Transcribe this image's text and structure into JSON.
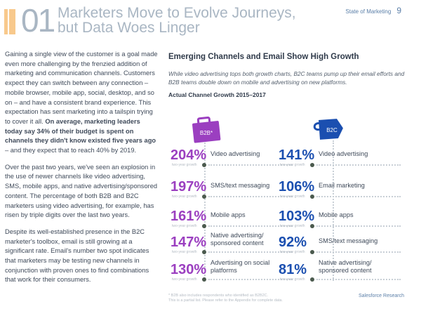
{
  "header": {
    "number": "01",
    "title_line1": "Marketers Move to Evolve Journeys,",
    "title_line2": "but Data Woes Linger",
    "report": "State of Marketing",
    "page": "9"
  },
  "left": {
    "paragraphs": [
      [
        {
          "t": "Gaining a single view of the customer is a goal made even more challenging by the frenzied addition of marketing and communication channels. Customers expect they can switch between any connection – mobile browser, mobile app, social, desktop, and so on – and have a consistent brand experience. This expectation has sent marketing into a tailspin trying to cover it all. "
        },
        {
          "b": "On average, marketing leaders today say 34% of their budget is spent on channels they didn't know existed five years ago"
        },
        {
          "t": " – and they expect that to reach 40% by 2019."
        }
      ],
      [
        {
          "t": "Over the past two years, we've seen an explosion in the use of newer channels like video advertising, SMS, mobile apps, and native advertising/sponsored content. The percentage of both B2B and B2C marketers using video advertising, for example, has risen by triple digits over the last two years."
        }
      ],
      [
        {
          "t": "Despite its well-established presence in the B2C marketer's toolbox, email is still growing at a significant rate. Email's number two spot indicates that marketers may be testing new channels in conjunction with proven ones to find combinations that work for their consumers."
        }
      ]
    ]
  },
  "right": {
    "heading": "Emerging Channels and Email Show High Growth",
    "intro": "While video advertising tops both growth charts, B2C teams pump up their email efforts and B2B teams double down on mobile and advertising on new platforms.",
    "chart_title": "Actual Channel Growth 2015–2017",
    "growth_label": "two-year growth",
    "b2b": {
      "label": "B2B*",
      "color": "#9b3fc0",
      "items": [
        {
          "pct": "204%",
          "label": "Video advertising"
        },
        {
          "pct": "197%",
          "label": "SMS/text messaging"
        },
        {
          "pct": "161%",
          "label": "Mobile apps"
        },
        {
          "pct": "147%",
          "label": "Native advertising/ sponsored content"
        },
        {
          "pct": "130%",
          "label": "Advertising on social platforms"
        }
      ]
    },
    "b2c": {
      "label": "B2C",
      "color": "#1b4fb0",
      "items": [
        {
          "pct": "141%",
          "label": "Video advertising"
        },
        {
          "pct": "106%",
          "label": "Email marketing"
        },
        {
          "pct": "103%",
          "label": "Mobile apps"
        },
        {
          "pct": "92%",
          "label": "SMS/text messaging"
        },
        {
          "pct": "81%",
          "label": "Native advertising/ sponsored content"
        }
      ]
    }
  },
  "footer": {
    "note1": "* B2B also includes respondents who identified as B2B2C.",
    "note2": "This is a partial list. Please refer to the Appendix for complete data.",
    "source": "Salesforce Research"
  }
}
